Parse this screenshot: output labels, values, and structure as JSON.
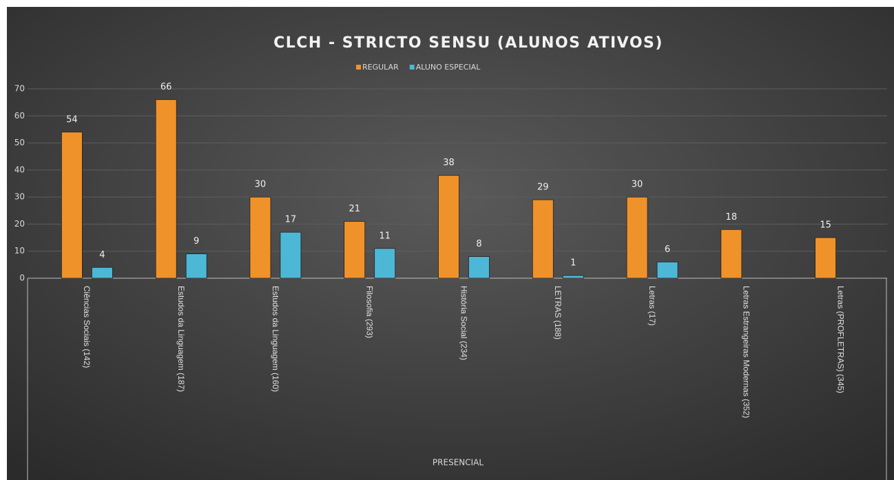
{
  "chart_data": {
    "type": "bar",
    "title": "CLCH - STRICTO  SENSU (ALUNOS  ATIVOS)",
    "categories": [
      "Ciências Sociais (142)",
      "Estudos da Linguagem (187)",
      "Estudos da Linguagem (160)",
      "Filosofia (293)",
      "História Social (234)",
      "LETRAS (188)",
      "Letras (17)",
      "Letras Estrangeiras Modernas (352)",
      "Letras (PROFLETRAS) (345)"
    ],
    "series": [
      {
        "name": "REGULAR",
        "color": "#f0922a",
        "values": [
          54,
          66,
          30,
          21,
          38,
          29,
          30,
          18,
          15
        ]
      },
      {
        "name": "ALUNO ESPECIAL",
        "color": "#4db8d6",
        "values": [
          4,
          9,
          17,
          11,
          8,
          1,
          6,
          null,
          null
        ]
      }
    ],
    "group_label": "PRESENCIAL",
    "ylim": [
      0,
      70
    ],
    "yticks": [
      0,
      10,
      20,
      30,
      40,
      50,
      60,
      70
    ],
    "grid": true,
    "legend": "top"
  }
}
